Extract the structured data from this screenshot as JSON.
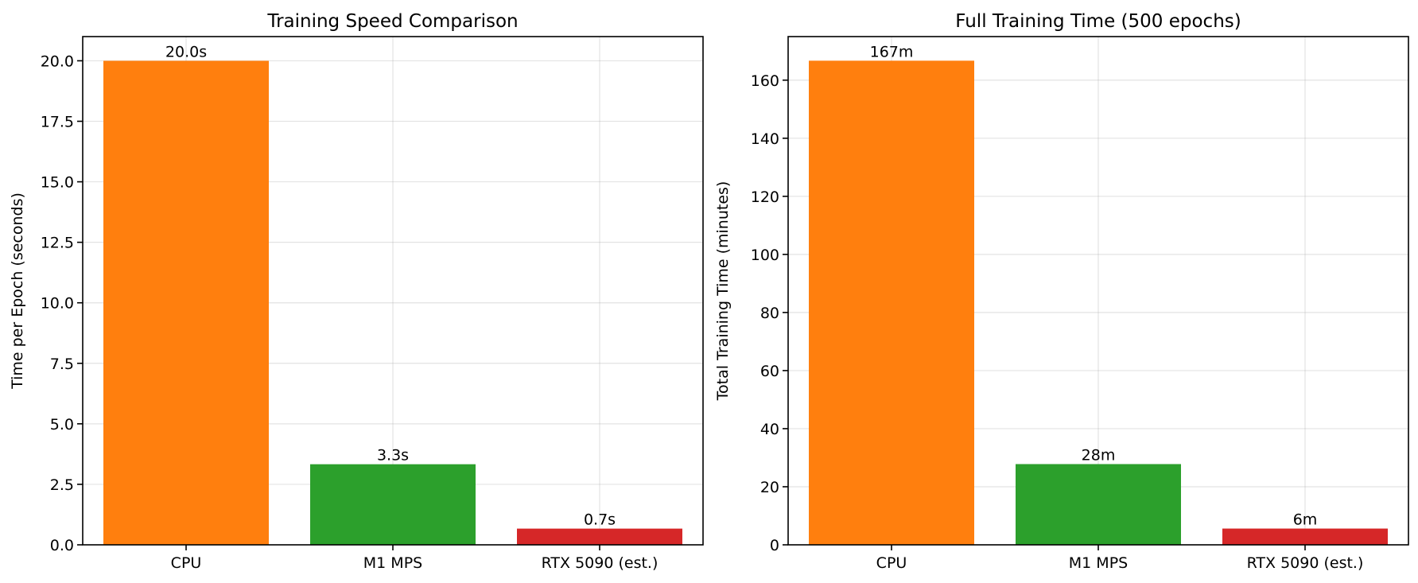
{
  "chart_data": [
    {
      "type": "bar",
      "title": "Training Speed Comparison",
      "xlabel": "",
      "ylabel": "Time per Epoch (seconds)",
      "categories": [
        "CPU",
        "M1 MPS",
        "RTX 5090 (est.)"
      ],
      "values": [
        20.0,
        3.33,
        0.67
      ],
      "data_labels": [
        "20.0s",
        "3.3s",
        "0.7s"
      ],
      "colors": [
        "#ff7f0e",
        "#2ca02c",
        "#d62728"
      ],
      "ylim": [
        0,
        21
      ],
      "yticks": [
        0.0,
        2.5,
        5.0,
        7.5,
        10.0,
        12.5,
        15.0,
        17.5,
        20.0
      ],
      "ytick_labels": [
        "0.0",
        "2.5",
        "5.0",
        "7.5",
        "10.0",
        "12.5",
        "15.0",
        "17.5",
        "20.0"
      ],
      "grid": true
    },
    {
      "type": "bar",
      "title": "Full Training Time (500 epochs)",
      "xlabel": "",
      "ylabel": "Total Training Time (minutes)",
      "categories": [
        "CPU",
        "M1 MPS",
        "RTX 5090 (est.)"
      ],
      "values": [
        166.7,
        27.8,
        5.6
      ],
      "data_labels": [
        "167m",
        "28m",
        "6m"
      ],
      "colors": [
        "#ff7f0e",
        "#2ca02c",
        "#d62728"
      ],
      "ylim": [
        0,
        175
      ],
      "yticks": [
        0,
        20,
        40,
        60,
        80,
        100,
        120,
        140,
        160
      ],
      "ytick_labels": [
        "0",
        "20",
        "40",
        "60",
        "80",
        "100",
        "120",
        "140",
        "160"
      ],
      "grid": true
    }
  ]
}
